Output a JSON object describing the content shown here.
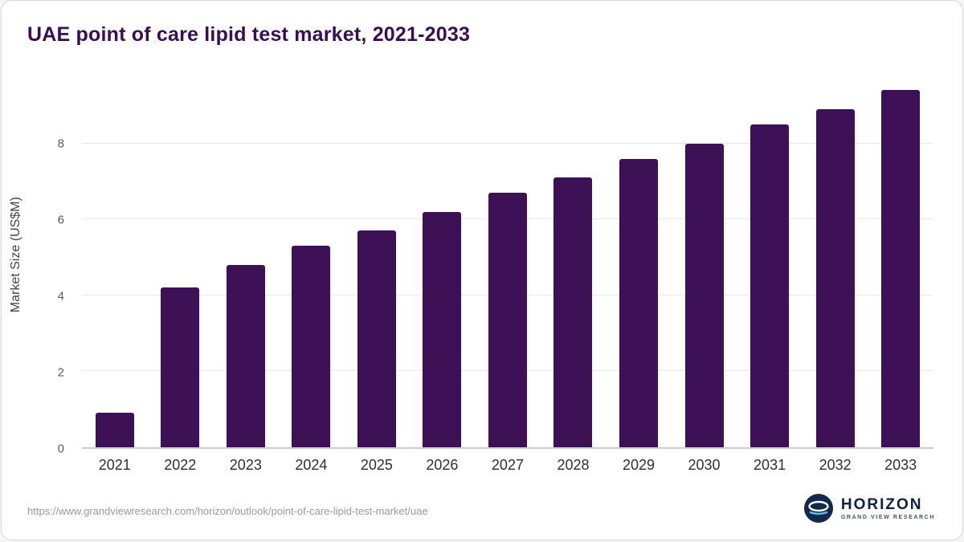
{
  "page": {
    "source_url": "https://www.grandviewresearch.com/horizon/outlook/point-of-care-lipid-test-market/uae",
    "logo": {
      "name": "HORIZON",
      "subtitle": "GRAND VIEW RESEARCH"
    }
  },
  "chart_data": {
    "type": "bar",
    "title": "UAE point of care lipid test market, 2021-2033",
    "categories": [
      "2021",
      "2022",
      "2023",
      "2024",
      "2025",
      "2026",
      "2027",
      "2028",
      "2029",
      "2030",
      "2031",
      "2032",
      "2033"
    ],
    "values": [
      0.9,
      4.2,
      4.8,
      5.3,
      5.7,
      6.2,
      6.7,
      7.1,
      7.6,
      8.0,
      8.5,
      8.9,
      9.4
    ],
    "xlabel": "",
    "ylabel": "Market Size (US$M)",
    "ylim": [
      0,
      9.6
    ],
    "yticks": [
      0,
      2,
      4,
      6,
      8
    ],
    "grid": "horizontal",
    "legend": "none",
    "bar_color": "#3e1055",
    "title_color": "#3a0e54"
  }
}
